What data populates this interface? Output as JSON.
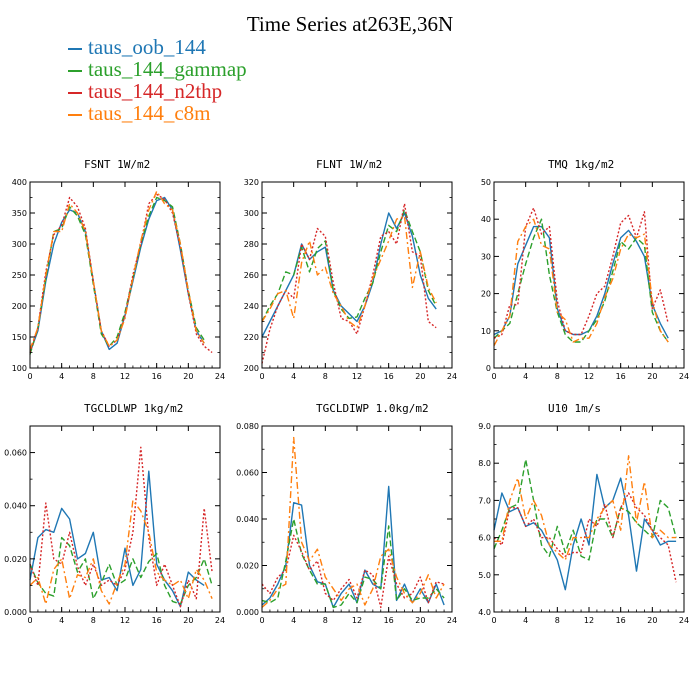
{
  "title": "Time Series at263E,36N",
  "legend": [
    {
      "label": "taus_oob_144",
      "color": "#1f77b4"
    },
    {
      "label": "taus_144_gammap",
      "color": "#2ca02c"
    },
    {
      "label": "taus_144_n2thp",
      "color": "#d62728"
    },
    {
      "label": "taus_144_c8m",
      "color": "#ff7f0e"
    }
  ],
  "chart_data": [
    {
      "type": "line",
      "title": "FSNT   1W/m2",
      "x": [
        0,
        1,
        2,
        3,
        4,
        5,
        6,
        7,
        8,
        9,
        10,
        11,
        12,
        13,
        14,
        15,
        16,
        17,
        18,
        19,
        20,
        21,
        22,
        23
      ],
      "xlim": [
        0,
        24
      ],
      "ylim": [
        100,
        400
      ],
      "xticks": [
        0,
        4,
        8,
        12,
        16,
        20,
        24
      ],
      "yticks": [
        100,
        150,
        200,
        250,
        300,
        350,
        400
      ],
      "yticklabels": [
        "100",
        "150",
        "200",
        "250",
        "300",
        "350",
        "400"
      ],
      "series": [
        {
          "name": "taus_oob_144",
          "color": "#1f77b4",
          "style": "solid",
          "values": [
            125,
            160,
            240,
            300,
            335,
            355,
            350,
            320,
            240,
            160,
            130,
            140,
            185,
            240,
            295,
            340,
            370,
            375,
            355,
            290,
            220,
            160,
            140,
            null
          ]
        },
        {
          "name": "taus_144_gammap",
          "color": "#2ca02c",
          "style": "dashed",
          "values": [
            122,
            165,
            245,
            320,
            325,
            360,
            345,
            315,
            235,
            155,
            135,
            150,
            190,
            245,
            300,
            345,
            375,
            370,
            360,
            300,
            225,
            165,
            145,
            null
          ]
        },
        {
          "name": "taus_144_n2thp",
          "color": "#d62728",
          "style": "dotted",
          "values": [
            125,
            165,
            255,
            315,
            330,
            375,
            360,
            325,
            240,
            160,
            135,
            145,
            185,
            250,
            300,
            365,
            380,
            372,
            350,
            295,
            220,
            155,
            135,
            125
          ]
        },
        {
          "name": "taus_144_c8m",
          "color": "#ff7f0e",
          "style": "dashdot",
          "values": [
            130,
            165,
            250,
            320,
            320,
            365,
            350,
            320,
            240,
            160,
            135,
            145,
            180,
            245,
            305,
            355,
            385,
            365,
            355,
            300,
            225,
            160,
            140,
            null
          ]
        }
      ]
    },
    {
      "type": "line",
      "title": "FLNT   1W/m2",
      "x": [
        0,
        1,
        2,
        3,
        4,
        5,
        6,
        7,
        8,
        9,
        10,
        11,
        12,
        13,
        14,
        15,
        16,
        17,
        18,
        19,
        20,
        21,
        22,
        23
      ],
      "xlim": [
        0,
        24
      ],
      "ylim": [
        200,
        320
      ],
      "xticks": [
        0,
        4,
        8,
        12,
        16,
        20,
        24
      ],
      "yticks": [
        200,
        220,
        240,
        260,
        280,
        300,
        320
      ],
      "yticklabels": [
        "200",
        "220",
        "240",
        "260",
        "280",
        "300",
        "320"
      ],
      "series": [
        {
          "name": "taus_oob_144",
          "color": "#1f77b4",
          "style": "solid",
          "values": [
            220,
            230,
            240,
            250,
            260,
            280,
            270,
            275,
            278,
            250,
            240,
            235,
            230,
            240,
            255,
            280,
            300,
            290,
            300,
            285,
            260,
            245,
            238,
            null
          ]
        },
        {
          "name": "taus_144_gammap",
          "color": "#2ca02c",
          "style": "dashed",
          "values": [
            230,
            240,
            248,
            262,
            260,
            278,
            262,
            277,
            282,
            250,
            238,
            232,
            233,
            245,
            255,
            275,
            292,
            288,
            302,
            288,
            275,
            250,
            240,
            null
          ]
        },
        {
          "name": "taus_144_n2thp",
          "color": "#d62728",
          "style": "dotted",
          "values": [
            203,
            225,
            240,
            250,
            245,
            280,
            270,
            290,
            285,
            255,
            232,
            230,
            222,
            240,
            260,
            285,
            288,
            280,
            306,
            275,
            272,
            230,
            226,
            null
          ]
        },
        {
          "name": "taus_144_c8m",
          "color": "#ff7f0e",
          "style": "dashdot",
          "values": [
            230,
            238,
            248,
            250,
            232,
            268,
            282,
            260,
            265,
            248,
            240,
            230,
            226,
            240,
            258,
            270,
            282,
            296,
            298,
            252,
            275,
            252,
            242,
            null
          ]
        }
      ]
    },
    {
      "type": "line",
      "title": "TMQ   1kg/m2",
      "x": [
        0,
        1,
        2,
        3,
        4,
        5,
        6,
        7,
        8,
        9,
        10,
        11,
        12,
        13,
        14,
        15,
        16,
        17,
        18,
        19,
        20,
        21,
        22,
        23
      ],
      "xlim": [
        0,
        24
      ],
      "ylim": [
        0,
        50
      ],
      "xticks": [
        0,
        4,
        8,
        12,
        16,
        20,
        24
      ],
      "yticks": [
        0,
        10,
        20,
        30,
        40,
        50
      ],
      "yticklabels": [
        "0",
        "10",
        "20",
        "30",
        "40",
        "50"
      ],
      "series": [
        {
          "name": "taus_oob_144",
          "color": "#1f77b4",
          "style": "solid",
          "values": [
            9,
            10,
            14,
            28,
            33,
            38,
            38,
            35,
            16,
            10,
            9,
            9,
            10,
            14,
            20,
            28,
            35,
            37,
            34,
            30,
            17,
            12,
            8,
            null
          ]
        },
        {
          "name": "taus_144_gammap",
          "color": "#2ca02c",
          "style": "dashed",
          "values": [
            8,
            10,
            12,
            20,
            28,
            35,
            40,
            25,
            15,
            9,
            7,
            7,
            10,
            13,
            18,
            26,
            34,
            32,
            35,
            33,
            15,
            10,
            7,
            null
          ]
        },
        {
          "name": "taus_144_n2thp",
          "color": "#d62728",
          "style": "dotted",
          "values": [
            8,
            9,
            17,
            17,
            38,
            43,
            36,
            38,
            18,
            10,
            9,
            9,
            14,
            20,
            22,
            30,
            39,
            41,
            35,
            42,
            16,
            21,
            12,
            null
          ]
        },
        {
          "name": "taus_144_c8m",
          "color": "#ff7f0e",
          "style": "dashdot",
          "values": [
            6,
            10,
            14,
            34,
            38,
            40,
            33,
            32,
            15,
            13,
            7,
            8,
            8,
            12,
            19,
            24,
            32,
            36,
            35,
            36,
            18,
            10,
            7,
            null
          ]
        }
      ]
    },
    {
      "type": "line",
      "title": "TGCLDLWP   1kg/m2",
      "x": [
        0,
        1,
        2,
        3,
        4,
        5,
        6,
        7,
        8,
        9,
        10,
        11,
        12,
        13,
        14,
        15,
        16,
        17,
        18,
        19,
        20,
        21,
        22,
        23
      ],
      "xlim": [
        0,
        24
      ],
      "ylim": [
        0,
        0.07
      ],
      "xticks": [
        0,
        4,
        8,
        12,
        16,
        20,
        24
      ],
      "yticks": [
        0,
        0.02,
        0.04,
        0.06
      ],
      "yticklabels": [
        "0.000",
        "0.020",
        "0.040",
        "0.060"
      ],
      "series": [
        {
          "name": "taus_oob_144",
          "color": "#1f77b4",
          "style": "solid",
          "values": [
            0.012,
            0.028,
            0.031,
            0.03,
            0.039,
            0.035,
            0.02,
            0.022,
            0.03,
            0.012,
            0.013,
            0.008,
            0.024,
            0.01,
            0.016,
            0.053,
            0.018,
            0.012,
            0.008,
            0.002,
            0.015,
            0.012,
            0.01,
            null
          ]
        },
        {
          "name": "taus_144_gammap",
          "color": "#2ca02c",
          "style": "dashed",
          "values": [
            0.018,
            0.011,
            0.007,
            0.006,
            0.028,
            0.025,
            0.015,
            0.02,
            0.005,
            0.011,
            0.018,
            0.01,
            0.012,
            0.02,
            0.013,
            0.019,
            0.022,
            0.01,
            0.004,
            0.003,
            0.01,
            0.013,
            0.02,
            0.01
          ]
        },
        {
          "name": "taus_144_n2thp",
          "color": "#d62728",
          "style": "dotted",
          "values": [
            0.018,
            0.01,
            0.041,
            0.02,
            0.018,
            0.03,
            0.017,
            0.01,
            0.018,
            0.01,
            0.012,
            0.01,
            0.016,
            0.03,
            0.062,
            0.028,
            0.01,
            0.018,
            0.01,
            0.002,
            0.012,
            0.005,
            0.039,
            0.015
          ]
        },
        {
          "name": "taus_144_c8m",
          "color": "#ff7f0e",
          "style": "dashdot",
          "values": [
            0.01,
            0.013,
            0.003,
            0.016,
            0.02,
            0.005,
            0.014,
            0.013,
            0.02,
            0.008,
            0.003,
            0.011,
            0.018,
            0.042,
            0.038,
            0.03,
            0.015,
            0.012,
            0.01,
            0.012,
            0.005,
            0.016,
            0.012,
            0.005
          ]
        }
      ]
    },
    {
      "type": "line",
      "title": "TGCLDIWP   1.0kg/m2",
      "x": [
        0,
        1,
        2,
        3,
        4,
        5,
        6,
        7,
        8,
        9,
        10,
        11,
        12,
        13,
        14,
        15,
        16,
        17,
        18,
        19,
        20,
        21,
        22,
        23
      ],
      "xlim": [
        0,
        24
      ],
      "ylim": [
        0,
        0.08
      ],
      "xticks": [
        0,
        4,
        8,
        12,
        16,
        20,
        24
      ],
      "yticks": [
        0,
        0.02,
        0.04,
        0.06,
        0.08
      ],
      "yticklabels": [
        "0.000",
        "0.020",
        "0.040",
        "0.060",
        "0.080"
      ],
      "series": [
        {
          "name": "taus_oob_144",
          "color": "#1f77b4",
          "style": "solid",
          "values": [
            0.003,
            0.006,
            0.012,
            0.02,
            0.047,
            0.046,
            0.02,
            0.013,
            0.012,
            0.002,
            0.008,
            0.012,
            0.004,
            0.018,
            0.012,
            0.01,
            0.054,
            0.005,
            0.012,
            0.004,
            0.01,
            0.004,
            0.012,
            0.003
          ]
        },
        {
          "name": "taus_144_gammap",
          "color": "#2ca02c",
          "style": "dashed",
          "values": [
            0.005,
            0.004,
            0.006,
            0.022,
            0.04,
            0.025,
            0.018,
            0.012,
            0.012,
            0.002,
            0.003,
            0.008,
            0.004,
            0.015,
            0.014,
            0.01,
            0.037,
            0.005,
            0.01,
            0.005,
            0.006,
            0.006,
            0.01,
            0.006
          ]
        },
        {
          "name": "taus_144_n2thp",
          "color": "#d62728",
          "style": "dotted",
          "values": [
            0.012,
            0.008,
            0.015,
            0.018,
            0.033,
            0.026,
            0.018,
            0.022,
            0.008,
            0.005,
            0.01,
            0.014,
            0.006,
            0.018,
            0.016,
            0.002,
            0.024,
            0.012,
            0.006,
            0.008,
            0.015,
            0.004,
            0.013,
            0.012
          ]
        },
        {
          "name": "taus_144_c8m",
          "color": "#ff7f0e",
          "style": "dashdot",
          "values": [
            0.002,
            0.005,
            0.01,
            0.012,
            0.075,
            0.03,
            0.022,
            0.027,
            0.015,
            0.01,
            0.005,
            0.01,
            0.012,
            0.003,
            0.01,
            0.024,
            0.027,
            0.015,
            0.008,
            0.004,
            0.008,
            0.016,
            0.006,
            0.012
          ]
        }
      ]
    },
    {
      "type": "line",
      "title": "U10   1m/s",
      "x": [
        0,
        1,
        2,
        3,
        4,
        5,
        6,
        7,
        8,
        9,
        10,
        11,
        12,
        13,
        14,
        15,
        16,
        17,
        18,
        19,
        20,
        21,
        22,
        23
      ],
      "xlim": [
        0,
        24
      ],
      "ylim": [
        4,
        9
      ],
      "xticks": [
        0,
        4,
        8,
        12,
        16,
        20,
        24
      ],
      "yticks": [
        4,
        5,
        6,
        7,
        8,
        9
      ],
      "yticklabels": [
        "4.0",
        "5.0",
        "6.0",
        "7.0",
        "8.0",
        "9.0"
      ],
      "series": [
        {
          "name": "taus_oob_144",
          "color": "#1f77b4",
          "style": "solid",
          "values": [
            6.2,
            7.2,
            6.7,
            6.8,
            6.3,
            6.4,
            6.2,
            5.8,
            5.4,
            4.6,
            5.8,
            6.5,
            5.8,
            7.7,
            6.8,
            7.0,
            7.6,
            6.6,
            5.1,
            6.5,
            6.2,
            5.8,
            5.9,
            5.9
          ]
        },
        {
          "name": "taus_144_gammap",
          "color": "#2ca02c",
          "style": "dashed",
          "values": [
            5.7,
            6.2,
            6.8,
            6.9,
            8.1,
            7.0,
            5.8,
            5.5,
            6.3,
            5.6,
            6.2,
            5.5,
            5.4,
            6.5,
            6.5,
            6.0,
            6.8,
            6.7,
            6.4,
            6.2,
            6.0,
            7.0,
            6.8,
            6.0
          ]
        },
        {
          "name": "taus_144_n2thp",
          "color": "#d62728",
          "style": "dotted",
          "values": [
            6.0,
            5.8,
            6.8,
            6.8,
            6.3,
            6.5,
            6.0,
            6.0,
            5.7,
            5.5,
            5.6,
            5.6,
            6.5,
            6.3,
            6.9,
            6.0,
            6.8,
            7.2,
            6.8,
            6.6,
            6.2,
            6.0,
            5.8,
            4.8
          ]
        },
        {
          "name": "taus_144_c8m",
          "color": "#ff7f0e",
          "style": "dashdot",
          "values": [
            5.9,
            5.9,
            7.0,
            7.6,
            6.5,
            7.0,
            6.6,
            5.8,
            5.6,
            5.4,
            6.0,
            6.0,
            6.0,
            6.5,
            6.8,
            7.0,
            6.2,
            8.2,
            6.4,
            7.5,
            6.0,
            6.2,
            6.0,
            6.0
          ]
        }
      ]
    }
  ]
}
